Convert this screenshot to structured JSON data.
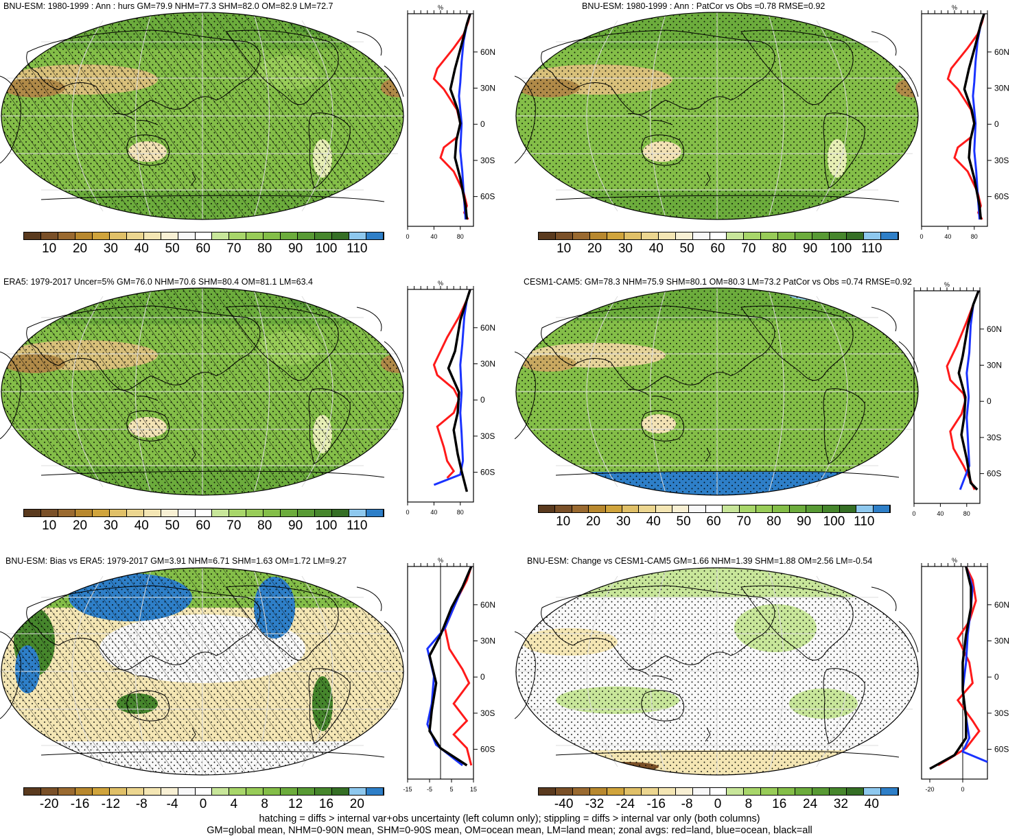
{
  "panels": [
    {
      "id": "p1",
      "title": "BNU-ESM: 1980-1999 : Ann : hurs GM=79.9 NHM=77.3 SHM=82.0 OM=82.9 LM=72.7",
      "colorbar_labels": [
        "10",
        "20",
        "30",
        "40",
        "50",
        "60",
        "70",
        "80",
        "90",
        "100",
        "110"
      ],
      "zonal_unit": "%",
      "zonal_x_ticks": [
        "0",
        "40",
        "80"
      ],
      "lat_labels": [
        "60N",
        "30N",
        "0",
        "30S",
        "60S"
      ]
    },
    {
      "id": "p2",
      "title": "BNU-ESM: 1980-1999 : Ann : PatCor vs Obs =0.78 RMSE=0.92",
      "colorbar_labels": [
        "10",
        "20",
        "30",
        "40",
        "50",
        "60",
        "70",
        "80",
        "90",
        "100",
        "110"
      ],
      "zonal_unit": "%",
      "zonal_x_ticks": [
        "0",
        "40",
        "80"
      ],
      "lat_labels": [
        "60N",
        "30N",
        "0",
        "30S",
        "60S"
      ]
    },
    {
      "id": "p3",
      "title": "ERA5: 1979-2017 Uncer=5% GM=76.0 NHM=70.6 SHM=80.4 OM=81.1 LM=63.4",
      "colorbar_labels": [
        "10",
        "20",
        "30",
        "40",
        "50",
        "60",
        "70",
        "80",
        "90",
        "100",
        "110"
      ],
      "zonal_unit": "%",
      "zonal_x_ticks": [
        "0",
        "40",
        "80"
      ],
      "lat_labels": [
        "60N",
        "30N",
        "0",
        "30S",
        "60S"
      ]
    },
    {
      "id": "p4",
      "title": "CESM1-CAM5: GM=78.3 NHM=75.9 SHM=80.1 OM=80.3 LM=73.2 PatCor vs Obs =0.74 RMSE=0.92",
      "colorbar_labels": [
        "10",
        "20",
        "30",
        "40",
        "50",
        "60",
        "70",
        "80",
        "90",
        "100",
        "110"
      ],
      "zonal_unit": "%",
      "zonal_x_ticks": [
        "0",
        "40",
        "80"
      ],
      "lat_labels": [
        "60N",
        "30N",
        "0",
        "30S",
        "60S"
      ]
    },
    {
      "id": "p5",
      "title": "BNU-ESM: Bias vs ERA5: 1979-2017 GM=3.91 NHM=6.71 SHM=1.63 OM=1.72 LM=9.27",
      "colorbar_labels": [
        "-20",
        "-16",
        "-12",
        "-8",
        "-4",
        "0",
        "4",
        "8",
        "12",
        "16",
        "20"
      ],
      "zonal_unit": "%",
      "zonal_x_ticks": [
        "-15",
        "-5",
        "5",
        "15"
      ],
      "lat_labels": [
        "60N",
        "30N",
        "0",
        "30S",
        "60S"
      ]
    },
    {
      "id": "p6",
      "title": "BNU-ESM: Change vs CESM1-CAM5 GM=1.66 NHM=1.39 SHM=1.88 OM=2.56 LM=-0.54",
      "colorbar_labels": [
        "-40",
        "-32",
        "-24",
        "-16",
        "-8",
        "0",
        "8",
        "16",
        "24",
        "32",
        "40"
      ],
      "zonal_unit": "%",
      "zonal_x_ticks": [
        "-20",
        "0"
      ],
      "lat_labels": [
        "60N",
        "30N",
        "0",
        "30S",
        "60S"
      ]
    }
  ],
  "colors": {
    "colorbar": [
      "#5a3a1e",
      "#7a5028",
      "#9a6a30",
      "#b8882e",
      "#d0a43c",
      "#e0c068",
      "#ecd690",
      "#f4e6b4",
      "#f8f0d4",
      "#f8f8f8",
      "#ffffff",
      "#c8e69a",
      "#a8d66a",
      "#98cc58",
      "#84be48",
      "#6cac3c",
      "#589a34",
      "#46862c",
      "#356f25",
      "#8ec8ee",
      "#2e7fc8"
    ],
    "land_line": "#ff1a1a",
    "ocean_line": "#1a33ff",
    "all_line": "#000000"
  },
  "footer": {
    "line1": "hatching = diffs > internal var+obs uncertainty (left column only); stippling = diffs > internal var only (both columns)",
    "line2": "GM=global mean, NHM=0-90N mean, SHM=0-90S mean, OM=ocean mean, LM=land mean; zonal avgs: red=land, blue=ocean, black=all"
  }
}
